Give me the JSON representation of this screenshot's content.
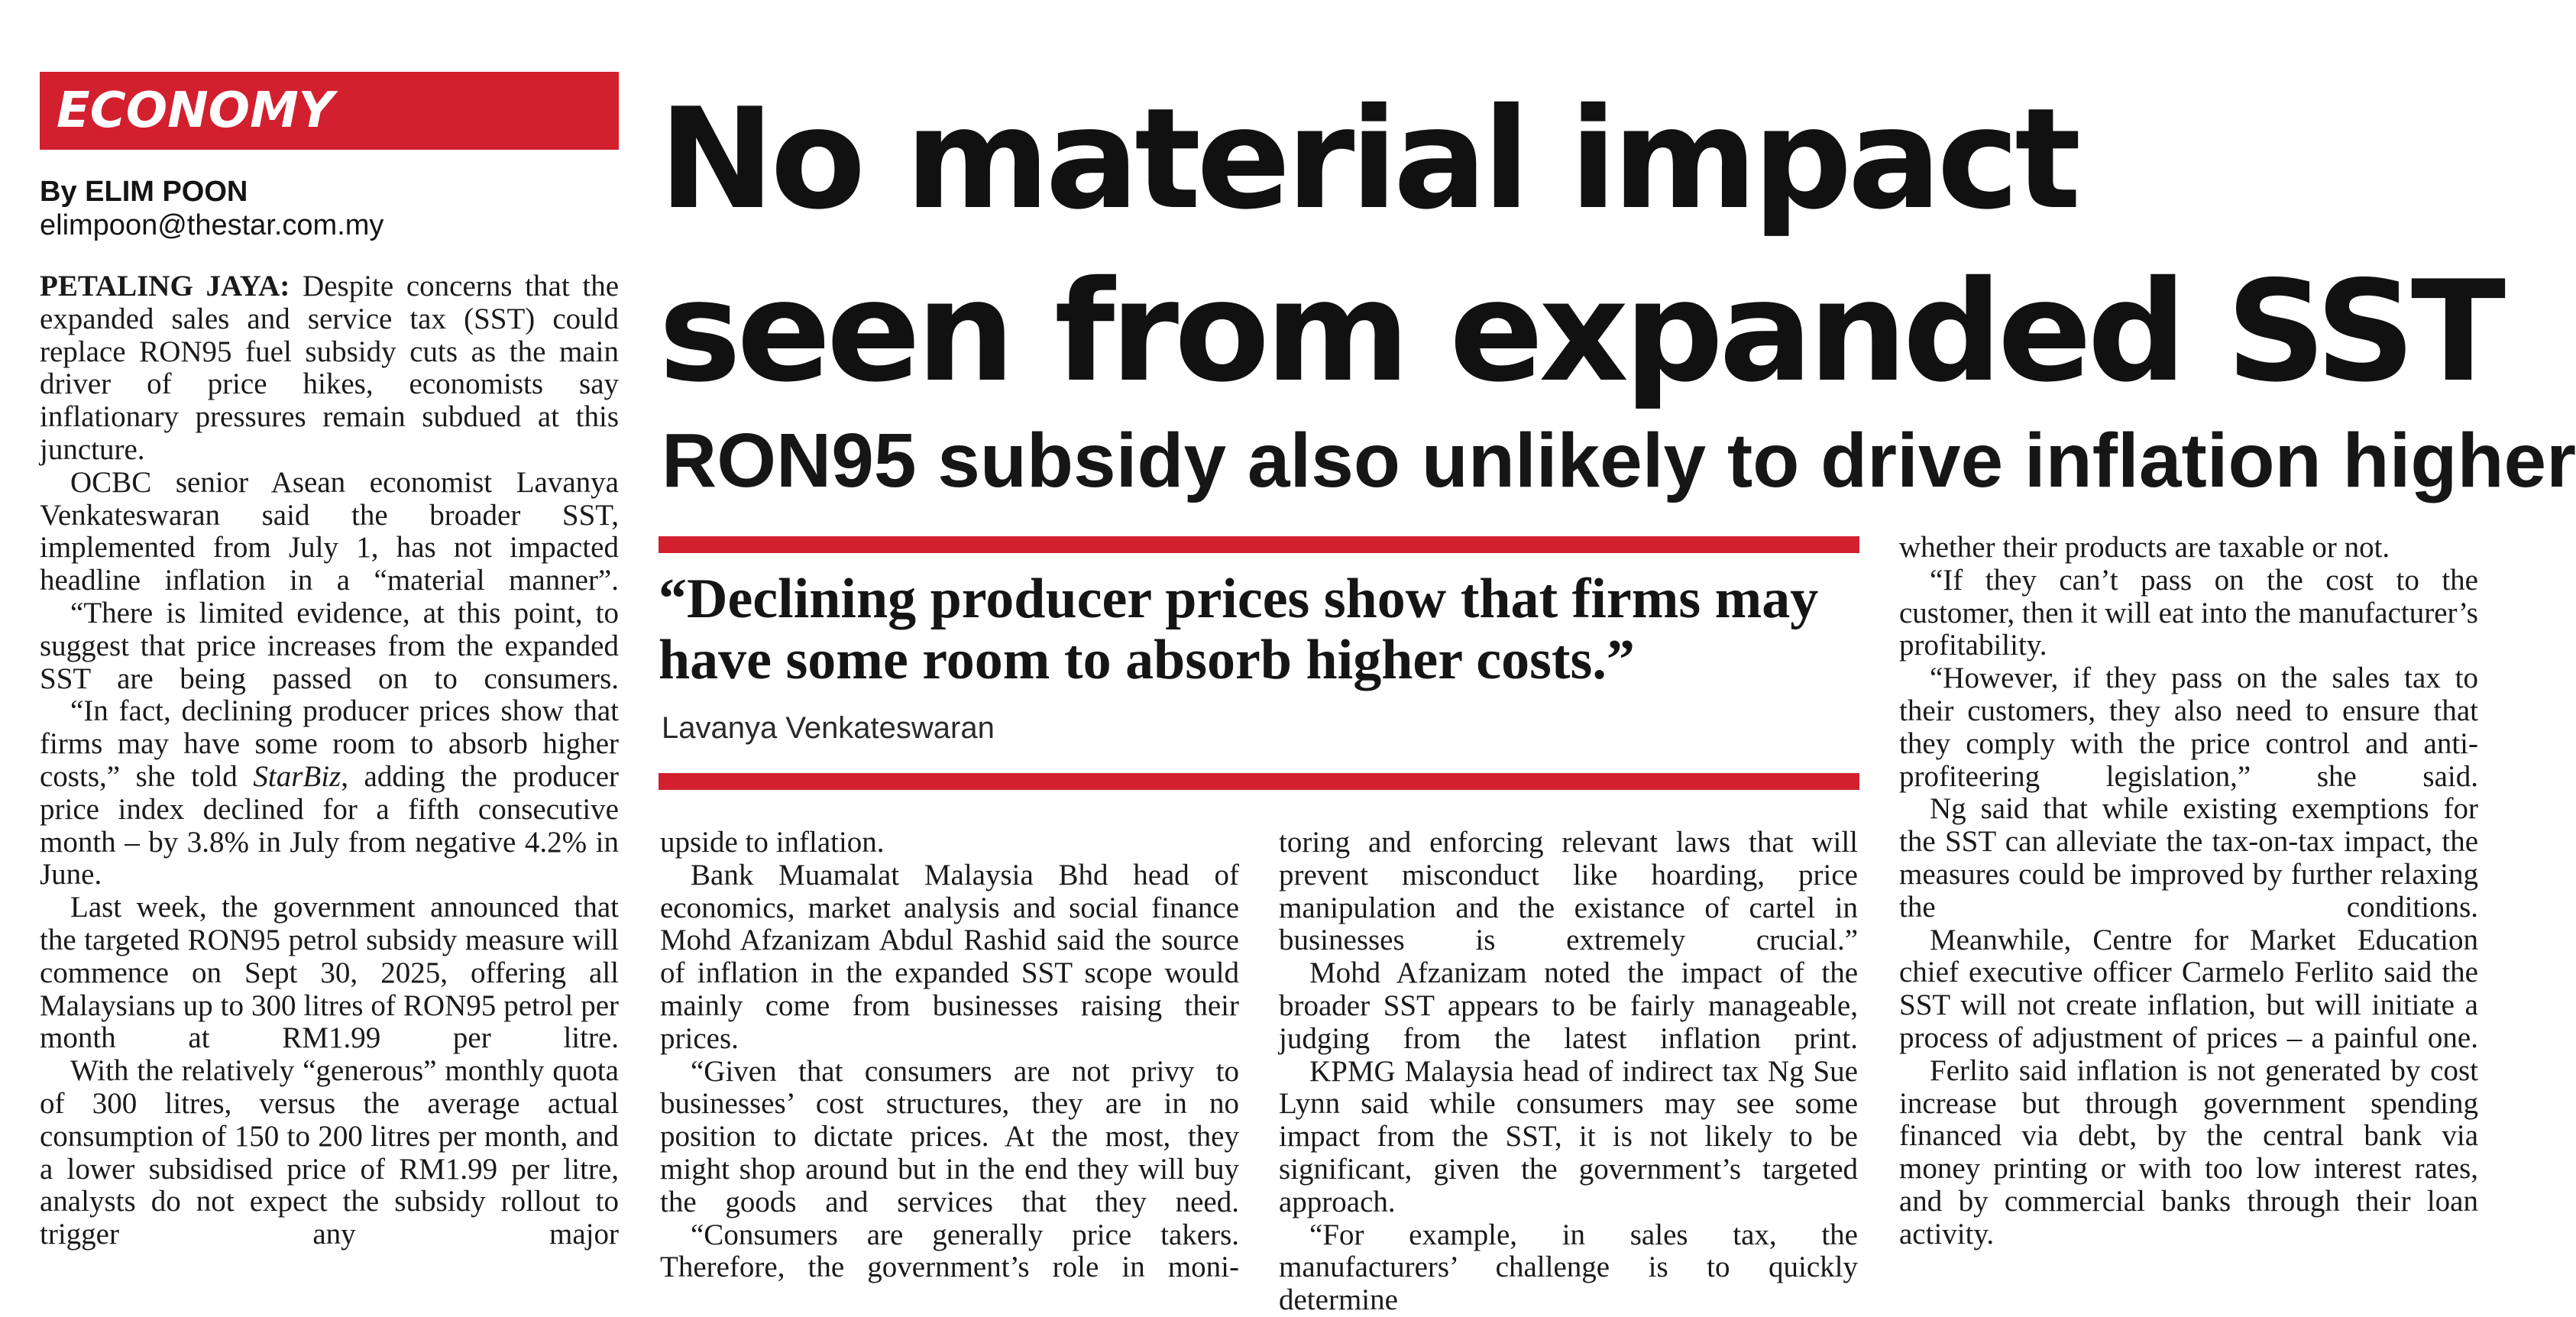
{
  "section": {
    "label": "ECONOMY"
  },
  "byline": {
    "author": "By ELIM POON",
    "email": "elimpoon@thestar.com.my"
  },
  "headline": {
    "line1": "No material impact",
    "line2": "seen from expanded SST"
  },
  "subheadline": "RON95 subsidy also unlikely to drive inflation higher",
  "pull_quote": {
    "line1": "“Declining producer prices show that firms may",
    "line2": "have some room to absorb higher costs.”",
    "attribution": "Lavanya Venkateswaran"
  },
  "colors": {
    "accent": "#d2202f",
    "text": "#141414",
    "background": "#ffffff"
  },
  "columns": {
    "col1": {
      "p1_dateline": "PETALING JAYA:",
      "p1": " Despite concerns that the expanded sales and service tax (SST) could replace RON95 fuel subsidy cuts as the main driver of price hikes, economists say inflationary pressures remain subdued at this juncture.",
      "p2": "OCBC senior Asean economist Lavanya Venkateswaran said the broader SST, implemented from July 1, has not impacted headline inflation in a “material manner”.",
      "p3": "“There is limited evidence, at this point, to suggest that price increases from the expanded SST are being passed on to consumers.",
      "p4a": "“In fact, declining producer prices show that firms may have some room to absorb higher costs,” she told ",
      "p4_pub": "StarBiz",
      "p4b": ", adding the producer price index declined for a fifth consecutive month – by 3.8% in July from negative 4.2% in June.",
      "p5": "Last week, the government announced that the targeted RON95 petrol subsidy measure will commence on Sept 30, 2025, offering all Malaysians up to 300 litres of RON95 petrol per month at RM1.99 per litre.",
      "p6": "With the relatively “generous” monthly quota of 300 litres, versus the average actual consumption of 150 to 200 litres per month, and a lower subsidised price of RM1.99 per litre, analysts do not expect the subsidy rollout to trigger any major"
    },
    "col2": {
      "p1": "upside to inflation.",
      "p2": "Bank Muamalat Malaysia Bhd head of economics, market analysis and social finance Mohd Afzanizam Abdul Rashid said the source of inflation in the expanded SST scope would mainly come from businesses raising their prices.",
      "p3": "“Given that consumers are not privy to businesses’ cost structures, they are in no position to dictate prices. At the most, they might shop around but in the end they will buy the goods and services that they need.",
      "p4": "“Consumers are generally price takers. Therefore, the government’s role in moni-"
    },
    "col3": {
      "p1": "toring and enforcing relevant laws that will prevent misconduct like hoarding, price manipulation and the existance of cartel in businesses is extremely crucial.”",
      "p2": "Mohd Afzanizam noted the impact of the broader SST appears to be fairly manageable, judging from the latest inflation print.",
      "p3": "KPMG Malaysia head of indirect tax Ng Sue Lynn said while consumers may see some impact from the SST, it is not likely to be significant, given the government’s targeted approach.",
      "p4": "“For example, in sales tax, the manufacturers’ challenge is to quickly determine"
    },
    "col4": {
      "p1": "whether their products are taxable or not.",
      "p2": "“If they can’t pass on the cost to the customer, then it will eat into the manufacturer’s profitability.",
      "p3": "“However, if they pass on the sales tax to their customers, they also need to ensure that they comply with the price control and anti-profiteering legislation,” she said.",
      "p4": "Ng said that while existing exemptions for the SST can alleviate the tax-on-tax impact, the measures could be improved by further relaxing the conditions.",
      "p5": "Meanwhile, Centre for Market Education chief executive officer Carmelo Ferlito said the SST will not create inflation, but will initiate a process of adjustment of prices – a painful one.",
      "p6": "Ferlito said inflation is not generated by cost increase but through government spending financed via debt, by the central bank via money printing or with too low interest rates, and by commercial banks through their loan activity."
    }
  }
}
